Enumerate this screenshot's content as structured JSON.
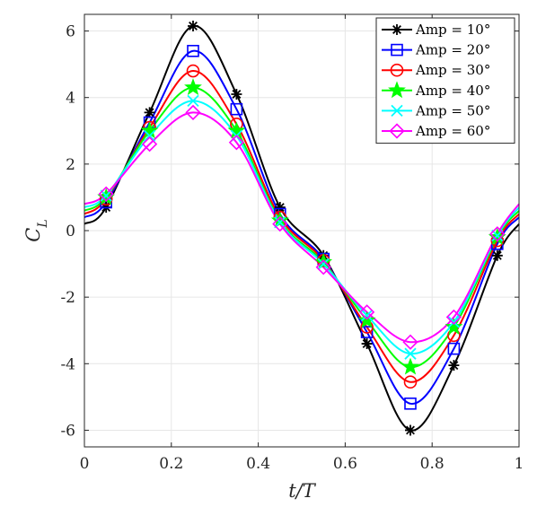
{
  "chart_data": {
    "type": "line",
    "title": "",
    "xlabel": "t/T",
    "ylabel": "C_L",
    "xlim": [
      0,
      1
    ],
    "ylim": [
      -6.5,
      6.5
    ],
    "xticks": [
      0,
      0.2,
      0.4,
      0.6,
      0.8,
      1
    ],
    "xtick_labels": [
      "0",
      "0.2",
      "0.4",
      "0.6",
      "0.8",
      "1"
    ],
    "yticks": [
      -6,
      -4,
      -2,
      0,
      2,
      4,
      6
    ],
    "ytick_labels": [
      "-6",
      "-4",
      "-2",
      "0",
      "2",
      "4",
      "6"
    ],
    "grid": true,
    "legend_position": "top-right",
    "series": [
      {
        "name": "Amp = 10°",
        "color": "#000000",
        "marker": "asterisk",
        "points": [
          [
            0,
            0.2
          ],
          [
            0.05,
            0.7
          ],
          [
            0.15,
            3.55
          ],
          [
            0.25,
            6.15
          ],
          [
            0.35,
            4.1
          ],
          [
            0.45,
            0.7
          ],
          [
            0.55,
            -0.75
          ],
          [
            0.65,
            -3.4
          ],
          [
            0.75,
            -6.0
          ],
          [
            0.85,
            -4.05
          ],
          [
            0.95,
            -0.75
          ],
          [
            1,
            0.2
          ]
        ],
        "marker_points": [
          [
            0.05,
            0.7
          ],
          [
            0.15,
            3.55
          ],
          [
            0.25,
            6.15
          ],
          [
            0.35,
            4.1
          ],
          [
            0.45,
            0.7
          ],
          [
            0.55,
            -0.75
          ],
          [
            0.65,
            -3.4
          ],
          [
            0.75,
            -6.0
          ],
          [
            0.85,
            -4.05
          ],
          [
            0.95,
            -0.75
          ]
        ]
      },
      {
        "name": "Amp = 20°",
        "color": "#0000ff",
        "marker": "square",
        "points": [
          [
            0,
            0.4
          ],
          [
            0.05,
            0.85
          ],
          [
            0.15,
            3.25
          ],
          [
            0.25,
            5.4
          ],
          [
            0.35,
            3.65
          ],
          [
            0.45,
            0.5
          ],
          [
            0.55,
            -0.85
          ],
          [
            0.65,
            -3.05
          ],
          [
            0.75,
            -5.2
          ],
          [
            0.85,
            -3.55
          ],
          [
            0.95,
            -0.4
          ],
          [
            1,
            0.4
          ]
        ],
        "marker_points": [
          [
            0.05,
            0.85
          ],
          [
            0.15,
            3.25
          ],
          [
            0.25,
            5.4
          ],
          [
            0.35,
            3.65
          ],
          [
            0.45,
            0.5
          ],
          [
            0.55,
            -0.85
          ],
          [
            0.65,
            -3.05
          ],
          [
            0.75,
            -5.2
          ],
          [
            0.85,
            -3.55
          ],
          [
            0.95,
            -0.4
          ]
        ]
      },
      {
        "name": "Amp = 30°",
        "color": "#ff0000",
        "marker": "circle",
        "points": [
          [
            0,
            0.5
          ],
          [
            0.05,
            0.95
          ],
          [
            0.15,
            3.1
          ],
          [
            0.25,
            4.8
          ],
          [
            0.35,
            3.2
          ],
          [
            0.45,
            0.4
          ],
          [
            0.55,
            -0.9
          ],
          [
            0.65,
            -2.9
          ],
          [
            0.75,
            -4.55
          ],
          [
            0.85,
            -3.15
          ],
          [
            0.95,
            -0.3
          ],
          [
            1,
            0.5
          ]
        ],
        "marker_points": [
          [
            0.05,
            0.95
          ],
          [
            0.15,
            3.1
          ],
          [
            0.25,
            4.8
          ],
          [
            0.35,
            3.2
          ],
          [
            0.45,
            0.4
          ],
          [
            0.55,
            -0.9
          ],
          [
            0.65,
            -2.9
          ],
          [
            0.75,
            -4.55
          ],
          [
            0.85,
            -3.15
          ],
          [
            0.95,
            -0.3
          ]
        ]
      },
      {
        "name": "Amp = 40°",
        "color": "#00ff00",
        "marker": "star",
        "points": [
          [
            0,
            0.6
          ],
          [
            0.05,
            1.0
          ],
          [
            0.15,
            3.0
          ],
          [
            0.25,
            4.3
          ],
          [
            0.35,
            3.0
          ],
          [
            0.45,
            0.3
          ],
          [
            0.55,
            -0.95
          ],
          [
            0.65,
            -2.7
          ],
          [
            0.75,
            -4.1
          ],
          [
            0.85,
            -2.9
          ],
          [
            0.95,
            -0.2
          ],
          [
            1,
            0.6
          ]
        ],
        "marker_points": [
          [
            0.05,
            1.0
          ],
          [
            0.15,
            3.0
          ],
          [
            0.25,
            4.3
          ],
          [
            0.35,
            3.0
          ],
          [
            0.45,
            0.3
          ],
          [
            0.55,
            -0.95
          ],
          [
            0.65,
            -2.7
          ],
          [
            0.75,
            -4.1
          ],
          [
            0.85,
            -2.9
          ],
          [
            0.95,
            -0.2
          ]
        ]
      },
      {
        "name": "Amp = 50°",
        "color": "#00ffff",
        "marker": "x",
        "points": [
          [
            0,
            0.7
          ],
          [
            0.05,
            1.05
          ],
          [
            0.15,
            2.85
          ],
          [
            0.25,
            3.9
          ],
          [
            0.35,
            2.85
          ],
          [
            0.45,
            0.25
          ],
          [
            0.55,
            -1.0
          ],
          [
            0.65,
            -2.55
          ],
          [
            0.75,
            -3.7
          ],
          [
            0.85,
            -2.75
          ],
          [
            0.95,
            -0.15
          ],
          [
            1,
            0.7
          ]
        ],
        "marker_points": [
          [
            0.05,
            1.05
          ],
          [
            0.15,
            2.85
          ],
          [
            0.25,
            3.9
          ],
          [
            0.35,
            2.85
          ],
          [
            0.45,
            0.25
          ],
          [
            0.55,
            -1.0
          ],
          [
            0.65,
            -2.55
          ],
          [
            0.75,
            -3.7
          ],
          [
            0.85,
            -2.75
          ],
          [
            0.95,
            -0.15
          ]
        ]
      },
      {
        "name": "Amp = 60°",
        "color": "#ff00ff",
        "marker": "diamond",
        "points": [
          [
            0,
            0.8
          ],
          [
            0.05,
            1.1
          ],
          [
            0.15,
            2.6
          ],
          [
            0.25,
            3.55
          ],
          [
            0.35,
            2.65
          ],
          [
            0.45,
            0.2
          ],
          [
            0.55,
            -1.1
          ],
          [
            0.65,
            -2.45
          ],
          [
            0.75,
            -3.35
          ],
          [
            0.85,
            -2.6
          ],
          [
            0.95,
            -0.1
          ],
          [
            1,
            0.8
          ]
        ],
        "marker_points": [
          [
            0.05,
            1.1
          ],
          [
            0.15,
            2.6
          ],
          [
            0.25,
            3.55
          ],
          [
            0.35,
            2.65
          ],
          [
            0.45,
            0.2
          ],
          [
            0.55,
            -1.1
          ],
          [
            0.65,
            -2.45
          ],
          [
            0.75,
            -3.35
          ],
          [
            0.85,
            -2.6
          ],
          [
            0.95,
            -0.1
          ]
        ]
      }
    ]
  }
}
